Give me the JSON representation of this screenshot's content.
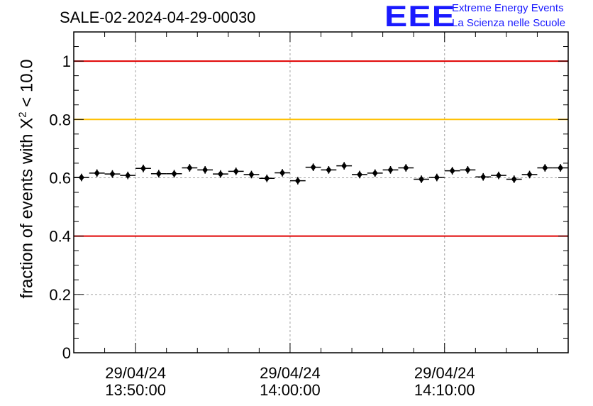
{
  "title": "SALE-02-2024-04-29-00030",
  "logo": {
    "mark": "EEE",
    "line1": "Extreme Energy Events",
    "line2": "La Scienza nelle Scuole",
    "color": "#1a1aff"
  },
  "chart_data": {
    "type": "scatter",
    "title": "SALE-02-2024-04-29-00030",
    "ylabel_prefix": "fraction of events with X",
    "ylabel_sup": "2",
    "ylabel_suffix": " < 10.0",
    "xlabel": "",
    "ylim": [
      0,
      1.1
    ],
    "y_ticks": [
      {
        "value": 0,
        "label": "0"
      },
      {
        "value": 0.2,
        "label": "0.2"
      },
      {
        "value": 0.4,
        "label": "0.4"
      },
      {
        "value": 0.6,
        "label": "0.6"
      },
      {
        "value": 0.8,
        "label": "0.8"
      },
      {
        "value": 1.0,
        "label": "1"
      }
    ],
    "xlim_minutes": [
      -4.0,
      28.0
    ],
    "x_ticks": [
      {
        "minute": 0,
        "date": "29/04/24",
        "time": "13:50:00"
      },
      {
        "minute": 10,
        "date": "29/04/24",
        "time": "14:00:00"
      },
      {
        "minute": 20,
        "date": "29/04/24",
        "time": "14:10:00"
      }
    ],
    "grid": true,
    "reference_lines": [
      {
        "y": 1.0,
        "color": "#e00000"
      },
      {
        "y": 0.8,
        "color": "#ffc000"
      },
      {
        "y": 0.4,
        "color": "#e00000"
      }
    ],
    "points": [
      {
        "x": "13:46:30",
        "y": 0.601
      },
      {
        "x": "13:47:30",
        "y": 0.616
      },
      {
        "x": "13:48:30",
        "y": 0.613
      },
      {
        "x": "13:49:30",
        "y": 0.608
      },
      {
        "x": "13:50:30",
        "y": 0.632
      },
      {
        "x": "13:51:30",
        "y": 0.614
      },
      {
        "x": "13:52:30",
        "y": 0.614
      },
      {
        "x": "13:53:30",
        "y": 0.634
      },
      {
        "x": "13:54:30",
        "y": 0.627
      },
      {
        "x": "13:55:30",
        "y": 0.613
      },
      {
        "x": "13:56:30",
        "y": 0.622
      },
      {
        "x": "13:57:30",
        "y": 0.611
      },
      {
        "x": "13:58:30",
        "y": 0.598
      },
      {
        "x": "13:59:30",
        "y": 0.617
      },
      {
        "x": "14:00:30",
        "y": 0.59
      },
      {
        "x": "14:01:30",
        "y": 0.636
      },
      {
        "x": "14:02:30",
        "y": 0.627
      },
      {
        "x": "14:03:30",
        "y": 0.641
      },
      {
        "x": "14:04:30",
        "y": 0.611
      },
      {
        "x": "14:05:30",
        "y": 0.616
      },
      {
        "x": "14:06:30",
        "y": 0.627
      },
      {
        "x": "14:07:30",
        "y": 0.634
      },
      {
        "x": "14:08:30",
        "y": 0.595
      },
      {
        "x": "14:09:30",
        "y": 0.601
      },
      {
        "x": "14:10:30",
        "y": 0.624
      },
      {
        "x": "14:11:30",
        "y": 0.627
      },
      {
        "x": "14:12:30",
        "y": 0.603
      },
      {
        "x": "14:13:30",
        "y": 0.608
      },
      {
        "x": "14:14:30",
        "y": 0.595
      },
      {
        "x": "14:15:30",
        "y": 0.611
      },
      {
        "x": "14:16:30",
        "y": 0.634
      },
      {
        "x": "14:17:30",
        "y": 0.634
      }
    ],
    "y_error": 0.013,
    "point_color": "#000000"
  }
}
